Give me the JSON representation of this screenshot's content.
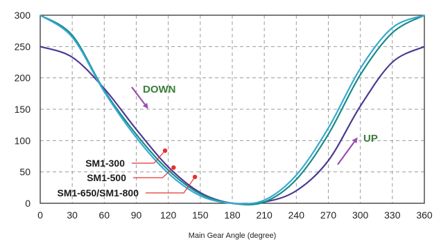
{
  "chart_data": {
    "type": "line",
    "title": "",
    "xlabel": "Main Gear Angle (degree)",
    "ylabel": "",
    "xlim": [
      0,
      360
    ],
    "ylim": [
      0,
      300
    ],
    "grid": true,
    "x_ticks": [
      "0",
      "30",
      "60",
      "90",
      "120",
      "150",
      "180",
      "210",
      "240",
      "270",
      "300",
      "330",
      "360"
    ],
    "y_ticks": [
      "300",
      "250",
      "200",
      "150",
      "100",
      "50",
      "0"
    ],
    "series": [
      {
        "name": "SM1-300",
        "color": "#4b3893",
        "x": [
          0,
          30,
          60,
          90,
          120,
          150,
          180,
          210,
          240,
          270,
          300,
          330,
          360
        ],
        "y": [
          250,
          233,
          183,
          118,
          58,
          17,
          0,
          2,
          20,
          68,
          155,
          225,
          250
        ]
      },
      {
        "name": "SM1-500",
        "color": "#1a8a86",
        "x": [
          0,
          30,
          60,
          90,
          120,
          150,
          180,
          210,
          240,
          270,
          300,
          330,
          360
        ],
        "y": [
          300,
          268,
          180,
          110,
          53,
          15,
          0,
          2,
          38,
          110,
          205,
          272,
          300
        ]
      },
      {
        "name": "SM1-650/SM1-800",
        "color": "#34a9d3",
        "x": [
          0,
          30,
          60,
          90,
          120,
          150,
          180,
          210,
          240,
          270,
          300,
          330,
          360
        ],
        "y": [
          300,
          265,
          178,
          105,
          48,
          12,
          0,
          5,
          45,
          120,
          215,
          280,
          300
        ]
      }
    ],
    "markers": [
      {
        "label": "SM1-300",
        "x": 117,
        "y": 84
      },
      {
        "label": "SM1-500",
        "x": 125,
        "y": 57
      },
      {
        "label": "SM1-650/SM1-800",
        "x": 145,
        "y": 42
      }
    ],
    "annotations": [
      {
        "text": "DOWN",
        "color": "#3a7d3a"
      },
      {
        "text": "UP",
        "color": "#3a7d3a"
      }
    ],
    "arrow_color": "#9b4fb0",
    "marker_color": "#e53030"
  }
}
